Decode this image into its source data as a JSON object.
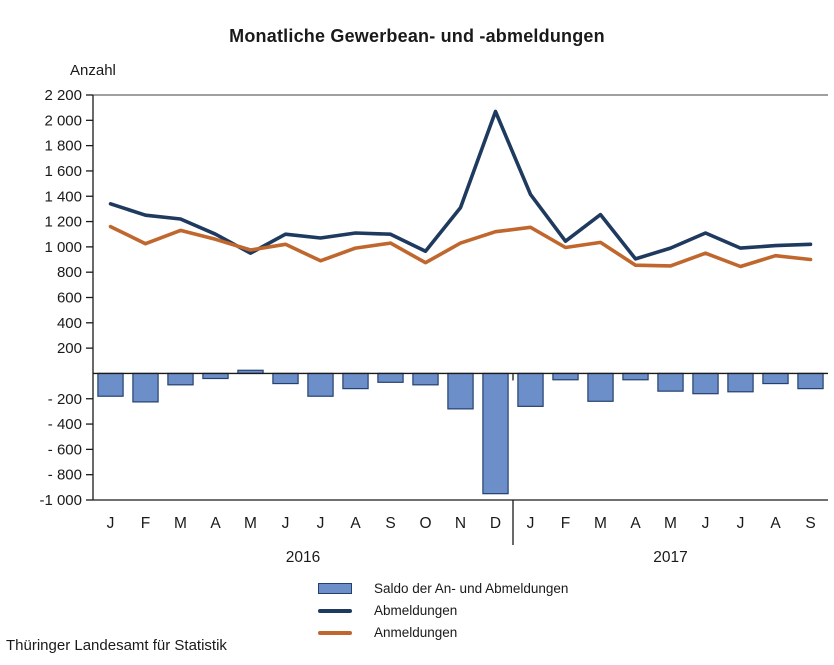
{
  "title": "Monatliche Gewerbean- und -abmeldungen",
  "y_axis_label": "Anzahl",
  "source": "Thüringer Landesamt für Statistik",
  "legend": [
    {
      "label": "Saldo der An- und Abmeldungen",
      "swatch": "bar"
    },
    {
      "label": "Abmeldungen",
      "swatch": "line"
    },
    {
      "label": "Anmeldungen",
      "swatch": "line"
    }
  ],
  "colors": {
    "abmeldungen_line": "#1f3a5f",
    "anmeldungen_line": "#c0672e",
    "saldo_bar_fill": "#6d8fc9",
    "saldo_bar_border": "#24406e",
    "axis": "#1a1a1a",
    "top_border": "#808080",
    "text": "#1a1a1a"
  },
  "chart_data": {
    "type": "combo",
    "categories": [
      "J",
      "F",
      "M",
      "A",
      "M",
      "J",
      "J",
      "A",
      "S",
      "O",
      "N",
      "D",
      "J",
      "F",
      "M",
      "A",
      "M",
      "J",
      "J",
      "A",
      "S"
    ],
    "year_groups": [
      {
        "label": "2016",
        "count": 12
      },
      {
        "label": "2017",
        "count": 9
      }
    ],
    "series": [
      {
        "name": "Saldo der An- und Abmeldungen",
        "type": "bar",
        "values": [
          -180,
          -225,
          -90,
          -40,
          25,
          -80,
          -180,
          -120,
          -70,
          -90,
          -280,
          -950,
          -260,
          -50,
          -220,
          -50,
          -140,
          -160,
          -145,
          -80,
          -120
        ]
      },
      {
        "name": "Abmeldungen",
        "type": "line",
        "values": [
          1340,
          1250,
          1220,
          1100,
          950,
          1100,
          1070,
          1110,
          1100,
          965,
          1310,
          2070,
          1415,
          1045,
          1255,
          905,
          990,
          1110,
          990,
          1010,
          1020
        ]
      },
      {
        "name": "Anmeldungen",
        "type": "line",
        "values": [
          1160,
          1025,
          1130,
          1060,
          975,
          1020,
          890,
          990,
          1030,
          875,
          1030,
          1120,
          1155,
          995,
          1035,
          855,
          850,
          950,
          845,
          930,
          900
        ]
      }
    ],
    "ylim": [
      -1000,
      2200
    ],
    "ytick_step": 200,
    "yticks": [
      {
        "value": 2200,
        "label": "2 200"
      },
      {
        "value": 2000,
        "label": "2 000"
      },
      {
        "value": 1800,
        "label": "1 800"
      },
      {
        "value": 1600,
        "label": "1 600"
      },
      {
        "value": 1400,
        "label": "1 400"
      },
      {
        "value": 1200,
        "label": "1 200"
      },
      {
        "value": 1000,
        "label": "1 000"
      },
      {
        "value": 800,
        "label": "800"
      },
      {
        "value": 600,
        "label": "600"
      },
      {
        "value": 400,
        "label": "400"
      },
      {
        "value": 200,
        "label": "200"
      },
      {
        "value": -200,
        "label": "- 200"
      },
      {
        "value": -400,
        "label": "- 400"
      },
      {
        "value": -600,
        "label": "- 600"
      },
      {
        "value": -800,
        "label": "- 800"
      },
      {
        "value": -1000,
        "label": "-1 000"
      }
    ],
    "grid": "top-border-only",
    "legend_position": "bottom"
  }
}
